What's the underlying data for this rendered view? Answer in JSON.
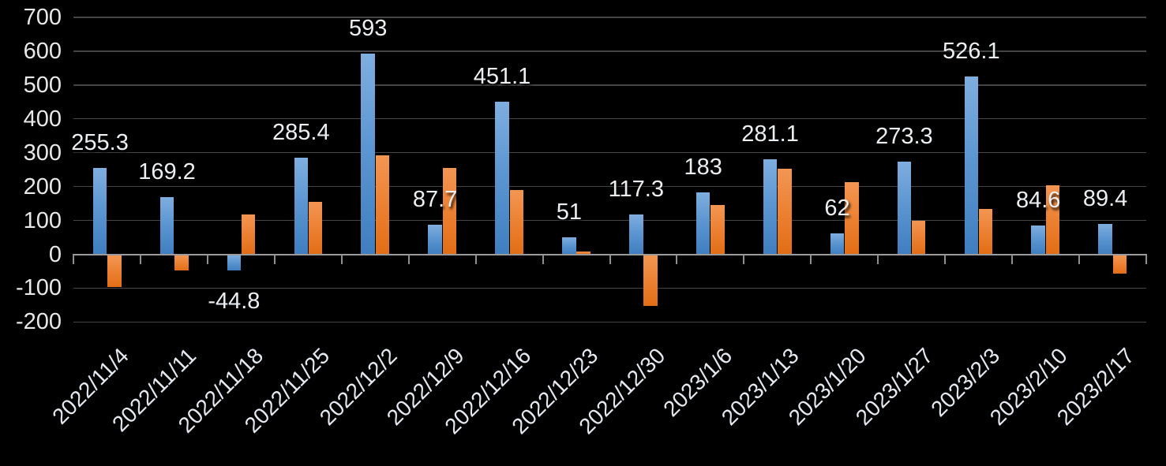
{
  "chart_data": {
    "type": "bar",
    "title": "",
    "categories": [
      "2022/11/4",
      "2022/11/11",
      "2022/11/18",
      "2022/11/25",
      "2022/12/2",
      "2022/12/9",
      "2022/12/16",
      "2022/12/23",
      "2022/12/30",
      "2023/1/6",
      "2023/1/13",
      "2023/1/20",
      "2023/1/27",
      "2023/2/3",
      "2023/2/10",
      "2023/2/17"
    ],
    "series": [
      {
        "name": "blue-series",
        "values": [
          255.3,
          169.2,
          -44.8,
          285.4,
          593,
          87.7,
          451.1,
          51,
          117.3,
          183,
          281.1,
          62,
          273.3,
          526.1,
          84.6,
          89.4
        ],
        "labels": [
          "255.3",
          "169.2",
          "-44.8",
          "285.4",
          "593",
          "87.7",
          "451.1",
          "51",
          "117.3",
          "183",
          "281.1",
          "62",
          "273.3",
          "526.1",
          "84.6",
          "89.4"
        ],
        "color_top": "#7FAEDF",
        "color_bottom": "#3F7EC0"
      },
      {
        "name": "orange-series",
        "values": [
          -95,
          -45,
          117,
          154,
          292,
          255,
          190,
          8,
          -150,
          145,
          253,
          212,
          100,
          133,
          203,
          -55
        ],
        "labels": null,
        "color_top": "#F39653",
        "color_bottom": "#E26E16"
      }
    ],
    "ylim": [
      -200,
      700
    ],
    "ytick_step": 100,
    "yticks": [
      "-200",
      "-100",
      "0",
      "100",
      "200",
      "300",
      "400",
      "500",
      "600",
      "700"
    ],
    "grid": true,
    "legend_position": "none",
    "xlabel": "",
    "ylabel": "",
    "background_color": "#000000",
    "axis_color": "#9b9b9b",
    "gridline_color": "#454545",
    "text_color": "#e8e8e8"
  }
}
